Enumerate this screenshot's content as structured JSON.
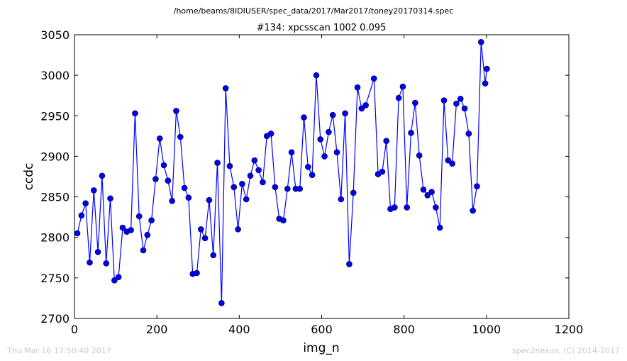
{
  "header": {
    "file_path": "/home/beams/8IDIUSER/spec_data/2017/Mar2017/toney20170314.spec"
  },
  "footer": {
    "timestamp": "Thu Mar 16 17:50:40 2017",
    "credit": "spec2nexus, (C) 2014-2017"
  },
  "chart_data": {
    "type": "line",
    "title": "#134: xpcsscan 1002 0.095",
    "xlabel": "img_n",
    "ylabel": "ccdc",
    "xlim": [
      0,
      1200
    ],
    "ylim": [
      2700,
      3050
    ],
    "xticks": [
      0,
      200,
      400,
      600,
      800,
      1000,
      1200
    ],
    "yticks": [
      2700,
      2750,
      2800,
      2850,
      2900,
      2950,
      3000,
      3050
    ],
    "line_color": "#0000ff",
    "marker": "circle",
    "grid": false,
    "series": [
      {
        "x": [
          7,
          17,
          27,
          37,
          47,
          57,
          67,
          77,
          87,
          97,
          107,
          117,
          127,
          137,
          147,
          157,
          167,
          177,
          187,
          197,
          207,
          217,
          227,
          237,
          247,
          257,
          267,
          277,
          287,
          297,
          307,
          317,
          327,
          337,
          347,
          357,
          367,
          377,
          387,
          397,
          407,
          417,
          427,
          437,
          447,
          457,
          467,
          477,
          487,
          497,
          507,
          517,
          527,
          537,
          547,
          557,
          567,
          577,
          587,
          597,
          607,
          617,
          627,
          637,
          647,
          657,
          667,
          677,
          687,
          697,
          707,
          727,
          737,
          747,
          757,
          767,
          777,
          787,
          797,
          807,
          817,
          827,
          837,
          847,
          857,
          867,
          877,
          887,
          897,
          907,
          917,
          927,
          937,
          947,
          957,
          967,
          977,
          987,
          997,
          1001
        ],
        "y": [
          2805,
          2827,
          2842,
          2769,
          2858,
          2782,
          2876,
          2768,
          2848,
          2747,
          2751,
          2812,
          2807,
          2809,
          2953,
          2826,
          2784,
          2803,
          2821,
          2872,
          2922,
          2889,
          2870,
          2845,
          2956,
          2924,
          2861,
          2849,
          2755,
          2756,
          2810,
          2799,
          2846,
          2778,
          2892,
          2719,
          2984,
          2888,
          2862,
          2810,
          2866,
          2847,
          2876,
          2895,
          2883,
          2868,
          2925,
          2928,
          2862,
          2823,
          2821,
          2860,
          2905,
          2860,
          2860,
          2948,
          2887,
          2877,
          3000,
          2921,
          2900,
          2930,
          2951,
          2905,
          2847,
          2953,
          2767,
          2855,
          2985,
          2959,
          2963,
          2996,
          2878,
          2881,
          2919,
          2835,
          2837,
          2972,
          2986,
          2837,
          2929,
          2966,
          2901,
          2859,
          2852,
          2856,
          2837,
          2812,
          2969,
          2895,
          2891,
          2965,
          2971,
          2959,
          2928,
          2833,
          2863,
          3041,
          2990,
          3008
        ]
      }
    ]
  }
}
